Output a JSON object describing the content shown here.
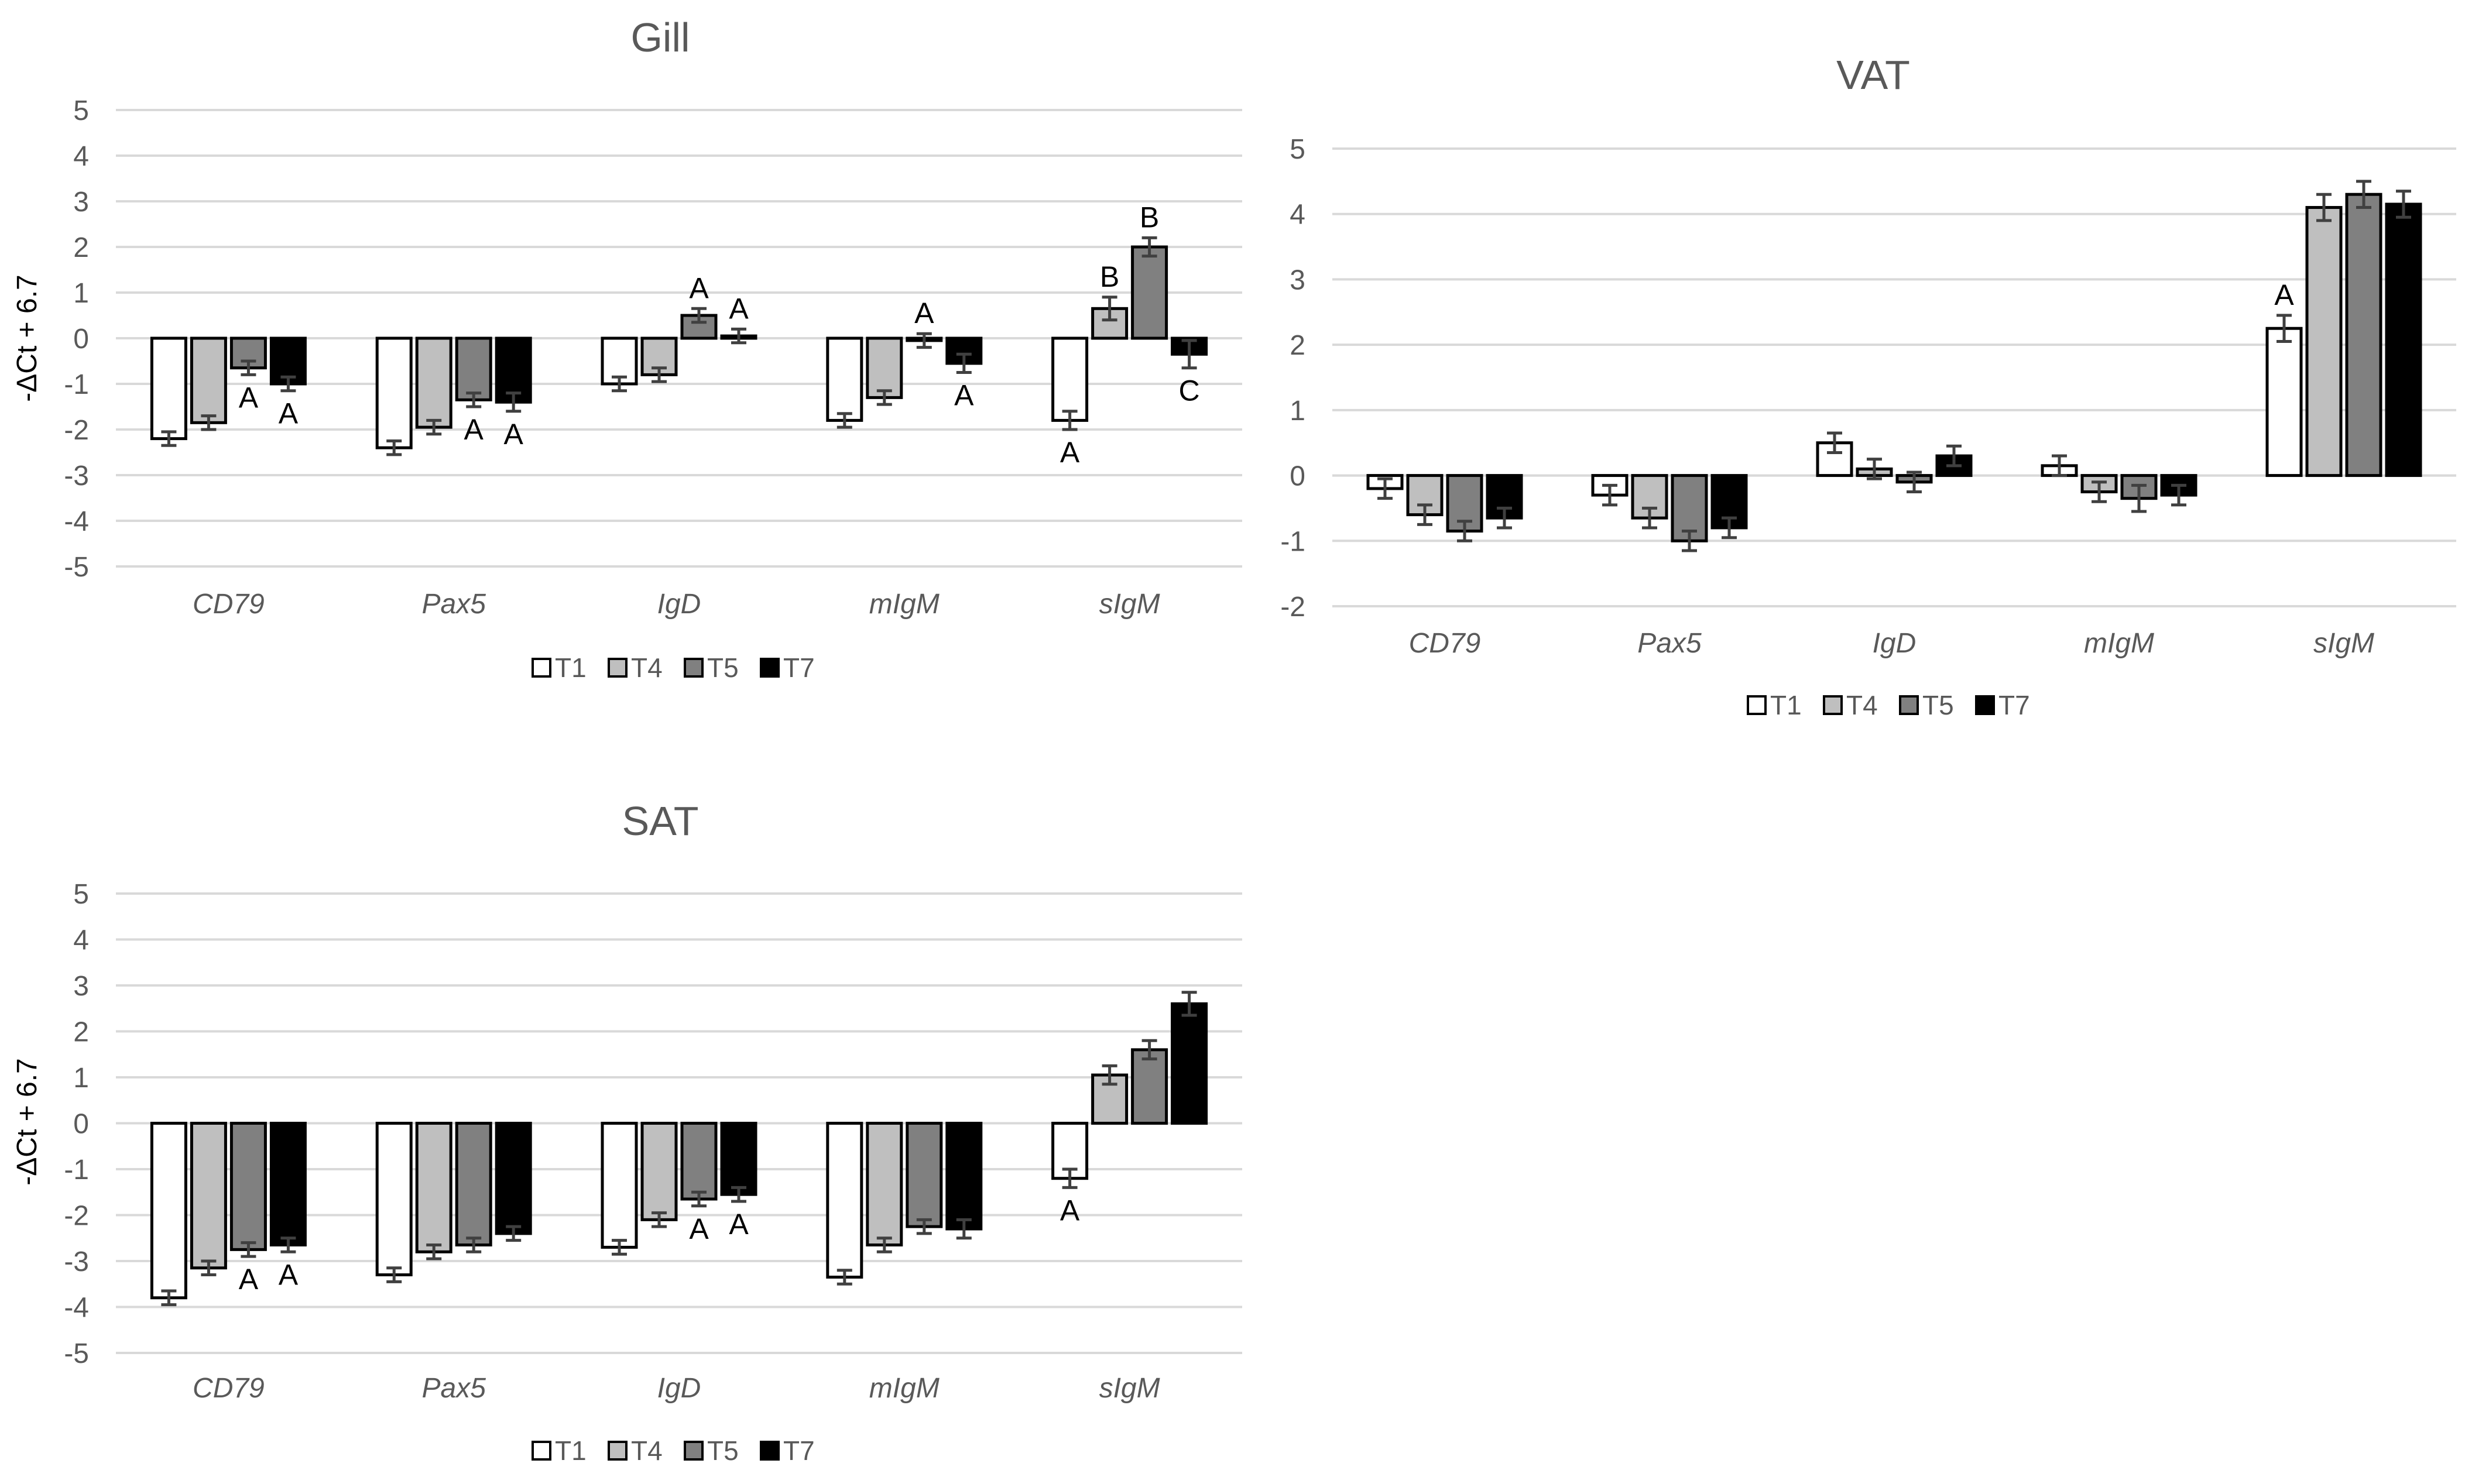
{
  "series_styles": [
    {
      "name": "T1",
      "fill": "#ffffff",
      "stroke": "#000000"
    },
    {
      "name": "T4",
      "fill": "#bfbfbf",
      "stroke": "#000000"
    },
    {
      "name": "T5",
      "fill": "#808080",
      "stroke": "#000000"
    },
    {
      "name": "T7",
      "fill": "#000000",
      "stroke": "#000000"
    }
  ],
  "chart_data": [
    {
      "type": "bar",
      "title": "Gill",
      "ylabel": "-ΔCt + 6.7",
      "ylim": [
        -5,
        5
      ],
      "ticks": [
        5,
        4,
        3,
        2,
        1,
        0,
        -1,
        -2,
        -3,
        -4,
        -5
      ],
      "categories": [
        "CD79",
        "Pax5",
        "IgD",
        "mIgM",
        "sIgM"
      ],
      "legend": [
        "T1",
        "T4",
        "T5",
        "T7"
      ],
      "series": [
        {
          "name": "T1",
          "values": [
            -2.2,
            -2.4,
            -1.0,
            -1.8,
            -1.8
          ],
          "errors": [
            0.15,
            0.15,
            0.15,
            0.15,
            0.2
          ]
        },
        {
          "name": "T4",
          "values": [
            -1.85,
            -1.95,
            -0.8,
            -1.3,
            0.65
          ],
          "errors": [
            0.15,
            0.15,
            0.15,
            0.15,
            0.25
          ]
        },
        {
          "name": "T5",
          "values": [
            -0.65,
            -1.35,
            0.5,
            -0.05,
            2.0
          ],
          "errors": [
            0.15,
            0.15,
            0.15,
            0.15,
            0.2
          ]
        },
        {
          "name": "T7",
          "values": [
            -1.0,
            -1.4,
            0.05,
            -0.55,
            -0.35
          ],
          "errors": [
            0.15,
            0.2,
            0.15,
            0.2,
            0.3
          ]
        }
      ],
      "annotations": [
        {
          "category": 0,
          "series": 2,
          "text": "A",
          "where": "below"
        },
        {
          "category": 0,
          "series": 3,
          "text": "A",
          "where": "below"
        },
        {
          "category": 1,
          "series": 2,
          "text": "A",
          "where": "below"
        },
        {
          "category": 1,
          "series": 3,
          "text": "A",
          "where": "below"
        },
        {
          "category": 2,
          "series": 2,
          "text": "A",
          "where": "above"
        },
        {
          "category": 2,
          "series": 3,
          "text": "A",
          "where": "above"
        },
        {
          "category": 3,
          "series": 2,
          "text": "A",
          "where": "above"
        },
        {
          "category": 3,
          "series": 3,
          "text": "A",
          "where": "below"
        },
        {
          "category": 4,
          "series": 0,
          "text": "A",
          "where": "below"
        },
        {
          "category": 4,
          "series": 1,
          "text": "B",
          "where": "above"
        },
        {
          "category": 4,
          "series": 2,
          "text": "B",
          "where": "above"
        },
        {
          "category": 4,
          "series": 3,
          "text": "C",
          "where": "below"
        }
      ]
    },
    {
      "type": "bar",
      "title": "VAT",
      "ylabel": "",
      "ylim": [
        -2,
        5
      ],
      "ticks": [
        5,
        4,
        3,
        2,
        1,
        0,
        -1,
        -2
      ],
      "categories": [
        "CD79",
        "Pax5",
        "IgD",
        "mIgM",
        "sIgM"
      ],
      "legend": [
        "T1",
        "T4",
        "T5",
        "T7"
      ],
      "series": [
        {
          "name": "T1",
          "values": [
            -0.2,
            -0.3,
            0.5,
            0.15,
            2.25
          ],
          "errors": [
            0.15,
            0.15,
            0.15,
            0.15,
            0.2
          ]
        },
        {
          "name": "T4",
          "values": [
            -0.6,
            -0.65,
            0.1,
            -0.25,
            4.1
          ],
          "errors": [
            0.15,
            0.15,
            0.15,
            0.15,
            0.2
          ]
        },
        {
          "name": "T5",
          "values": [
            -0.85,
            -1.0,
            -0.1,
            -0.35,
            4.3
          ],
          "errors": [
            0.15,
            0.15,
            0.15,
            0.2,
            0.2
          ]
        },
        {
          "name": "T7",
          "values": [
            -0.65,
            -0.8,
            0.3,
            -0.3,
            4.15
          ],
          "errors": [
            0.15,
            0.15,
            0.15,
            0.15,
            0.2
          ]
        }
      ],
      "annotations": [
        {
          "category": 4,
          "series": 0,
          "text": "A",
          "where": "above"
        }
      ]
    },
    {
      "type": "bar",
      "title": "SAT",
      "ylabel": "-ΔCt + 6.7",
      "ylim": [
        -5,
        5
      ],
      "ticks": [
        5,
        4,
        3,
        2,
        1,
        0,
        -1,
        -2,
        -3,
        -4,
        -5
      ],
      "categories": [
        "CD79",
        "Pax5",
        "IgD",
        "mIgM",
        "sIgM"
      ],
      "legend": [
        "T1",
        "T4",
        "T5",
        "T7"
      ],
      "series": [
        {
          "name": "T1",
          "values": [
            -3.8,
            -3.3,
            -2.7,
            -3.35,
            -1.2
          ],
          "errors": [
            0.15,
            0.15,
            0.15,
            0.15,
            0.2
          ]
        },
        {
          "name": "T4",
          "values": [
            -3.15,
            -2.8,
            -2.1,
            -2.65,
            1.05
          ],
          "errors": [
            0.15,
            0.15,
            0.15,
            0.15,
            0.2
          ]
        },
        {
          "name": "T5",
          "values": [
            -2.75,
            -2.65,
            -1.65,
            -2.25,
            1.6
          ],
          "errors": [
            0.15,
            0.15,
            0.15,
            0.15,
            0.2
          ]
        },
        {
          "name": "T7",
          "values": [
            -2.65,
            -2.4,
            -1.55,
            -2.3,
            2.6
          ],
          "errors": [
            0.15,
            0.15,
            0.15,
            0.2,
            0.25
          ]
        }
      ],
      "annotations": [
        {
          "category": 0,
          "series": 2,
          "text": "A",
          "where": "below"
        },
        {
          "category": 0,
          "series": 3,
          "text": "A",
          "where": "below"
        },
        {
          "category": 2,
          "series": 2,
          "text": "A",
          "where": "below"
        },
        {
          "category": 2,
          "series": 3,
          "text": "A",
          "where": "below"
        },
        {
          "category": 4,
          "series": 0,
          "text": "A",
          "where": "below"
        }
      ]
    }
  ]
}
